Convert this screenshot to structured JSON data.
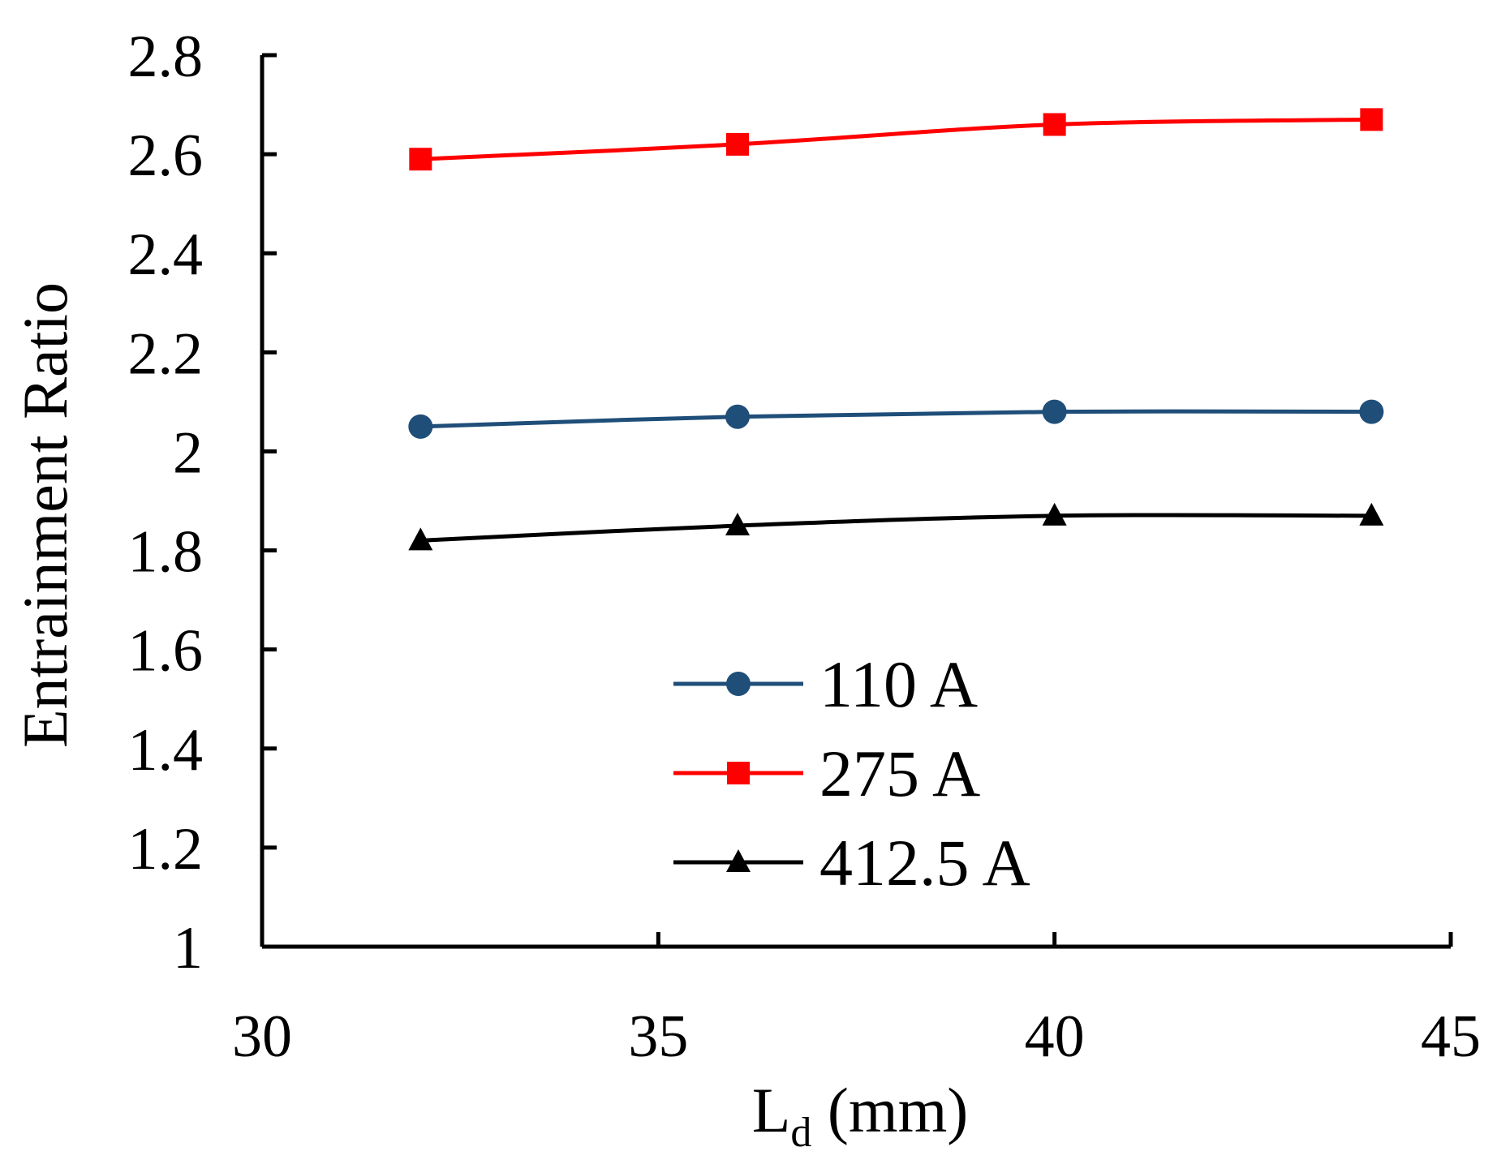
{
  "chart_data": {
    "type": "line",
    "title": "",
    "xlabel": "L",
    "xlabel_subscript": "d",
    "xlabel_unit": " (mm)",
    "ylabel": "Entrainment Ratio",
    "xlim": [
      30,
      45
    ],
    "ylim": [
      1,
      2.8
    ],
    "x_ticks": [
      30,
      35,
      40,
      45
    ],
    "x_tick_labels": [
      "30",
      "35",
      "40",
      "45"
    ],
    "y_ticks": [
      1,
      1.2,
      1.4,
      1.6,
      1.8,
      2,
      2.2,
      2.4,
      2.6,
      2.8
    ],
    "y_tick_labels": [
      "1",
      "1.2",
      "1.4",
      "1.6",
      "1.8",
      "2",
      "2.2",
      "2.4",
      "2.6",
      "2.8"
    ],
    "grid": false,
    "legend_position": "lower-center",
    "x": [
      32,
      36,
      40,
      44
    ],
    "series": [
      {
        "name": "110 A",
        "values": [
          2.05,
          2.07,
          2.08,
          2.08
        ],
        "color": "#1f4e79",
        "marker": "circle"
      },
      {
        "name": "275 A",
        "values": [
          2.59,
          2.62,
          2.66,
          2.67
        ],
        "color": "#ff0000",
        "marker": "square"
      },
      {
        "name": "412.5 A",
        "values": [
          1.82,
          1.85,
          1.87,
          1.87
        ],
        "color": "#000000",
        "marker": "triangle"
      }
    ]
  }
}
